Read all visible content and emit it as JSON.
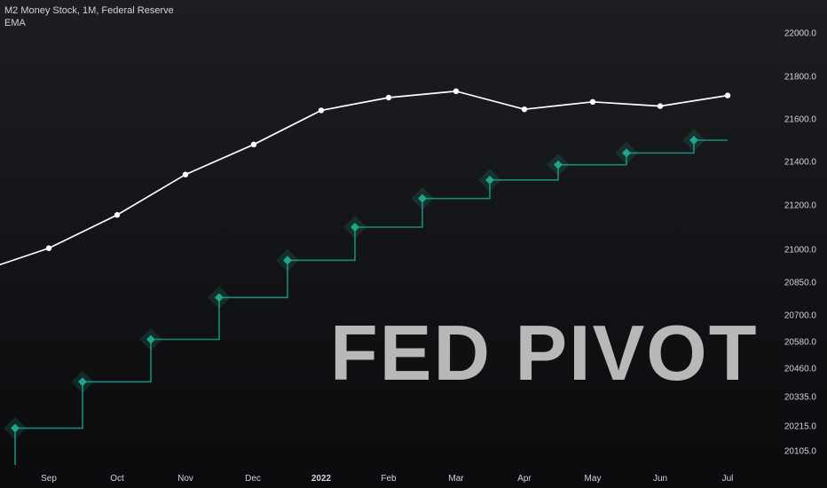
{
  "legend": {
    "series_title": "M2 Money Stock, 1M, Federal Reserve",
    "indicator": "EMA"
  },
  "watermark": "FED  PIVOT",
  "colors": {
    "background": "#131417",
    "m2_line": "#ffffff",
    "ema_line": "#1a8a78",
    "ema_marker": "#1fa58c",
    "text": "#d1d4dc"
  },
  "chart_data": {
    "type": "line",
    "x_labels": [
      "Sep",
      "Oct",
      "Nov",
      "Dec",
      "2022",
      "Feb",
      "Mar",
      "Apr",
      "May",
      "Jun",
      "Jul"
    ],
    "y_ticks": [
      "22000.0",
      "21800.0",
      "21600.0",
      "21400.0",
      "21200.0",
      "21000.0",
      "20850.0",
      "20700.0",
      "20580.0",
      "20460.0",
      "20335.0",
      "20215.0",
      "20105.0"
    ],
    "y_scale": "log",
    "series": [
      {
        "style": "line-with-dots",
        "points": [
          {
            "x": "Aug",
            "y": 20900
          },
          {
            "x": "Sep",
            "y": 21005
          },
          {
            "x": "Oct",
            "y": 21155
          },
          {
            "x": "Nov",
            "y": 21340
          },
          {
            "x": "Dec",
            "y": 21480
          },
          {
            "x": "2022",
            "y": 21640
          },
          {
            "x": "Feb",
            "y": 21700
          },
          {
            "x": "Mar",
            "y": 21730
          },
          {
            "x": "Apr",
            "y": 21645
          },
          {
            "x": "May",
            "y": 21680
          },
          {
            "x": "Jun",
            "y": 21660
          },
          {
            "x": "Jul",
            "y": 21710
          }
        ]
      },
      {
        "style": "step-with-diamonds",
        "points": [
          {
            "x": "Aug",
            "y": 20205
          },
          {
            "x": "Sep",
            "y": 20400
          },
          {
            "x": "Oct",
            "y": 20590
          },
          {
            "x": "Nov",
            "y": 20780
          },
          {
            "x": "Dec",
            "y": 20950
          },
          {
            "x": "2022",
            "y": 21100
          },
          {
            "x": "Feb",
            "y": 21230
          },
          {
            "x": "Mar",
            "y": 21315
          },
          {
            "x": "Apr",
            "y": 21385
          },
          {
            "x": "May",
            "y": 21440
          },
          {
            "x": "Jun",
            "y": 21500
          }
        ]
      }
    ]
  }
}
